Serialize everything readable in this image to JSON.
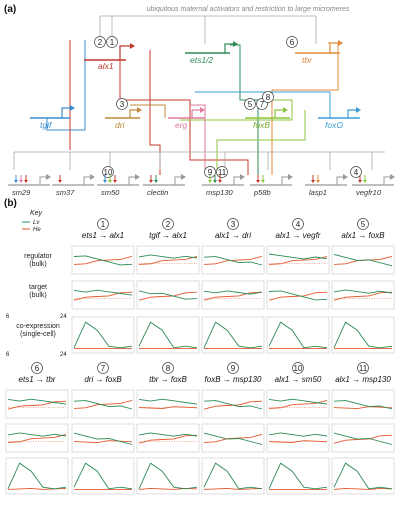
{
  "panel_a": {
    "label": "(a)",
    "top_text": "ubiquitous maternal activators and restriction to large micromeres",
    "regulators": [
      {
        "name": "alx1",
        "color": "#c0392b"
      },
      {
        "name": "ets1/2",
        "color": "#2e8b57"
      },
      {
        "name": "tbr",
        "color": "#e08a3a"
      },
      {
        "name": "tgif",
        "color": "#3a8ed0"
      },
      {
        "name": "dri",
        "color": "#c08a3a"
      },
      {
        "name": "erg",
        "color": "#e07aa0"
      },
      {
        "name": "foxB",
        "color": "#8cc43c"
      },
      {
        "name": "foxO",
        "color": "#3a9ed8"
      }
    ],
    "targets": [
      "sm29",
      "sm37",
      "sm50",
      "clectin",
      "msp130",
      "p58b",
      "lasp1",
      "vegfr10"
    ],
    "numbers": [
      "1",
      "2",
      "3",
      "4",
      "5",
      "6",
      "7",
      "8",
      "9",
      "10",
      "11"
    ]
  },
  "panel_b": {
    "label": "(b)",
    "key": {
      "title": "Key",
      "line1": "Lv",
      "line2": "He"
    },
    "row_labels": {
      "regulator": [
        "regulator",
        "(bulk)"
      ],
      "target": [
        "target",
        "(bulk)"
      ],
      "coexpr": [
        "co-expression",
        "(single-cell)"
      ]
    },
    "axis_ticks": {
      "bulk_left": "6",
      "bulk_right": "24",
      "sc_left": "6",
      "sc_right": "24"
    },
    "row1_headers": [
      {
        "num": "1",
        "label": "ets1 → alx1"
      },
      {
        "num": "2",
        "label": "tgif → alx1"
      },
      {
        "num": "3",
        "label": "alx1 → dri"
      },
      {
        "num": "4",
        "label": "alx1 → vegfr"
      },
      {
        "num": "5",
        "label": "alx1 → foxB"
      }
    ],
    "row2_headers": [
      {
        "num": "6",
        "label": "ets1 → tbr"
      },
      {
        "num": "7",
        "label": "dri → foxB"
      },
      {
        "num": "8",
        "label": "tbr → foxB"
      },
      {
        "num": "9",
        "label": "foxB → msp130"
      },
      {
        "num": "10",
        "label": "alx1 → sm50"
      },
      {
        "num": "11",
        "label": "alx1 → msp130"
      }
    ]
  },
  "colors": {
    "lv": "#2e8b57",
    "he": "#e2572b",
    "box": "#cfcfcf",
    "target": "#999999"
  }
}
